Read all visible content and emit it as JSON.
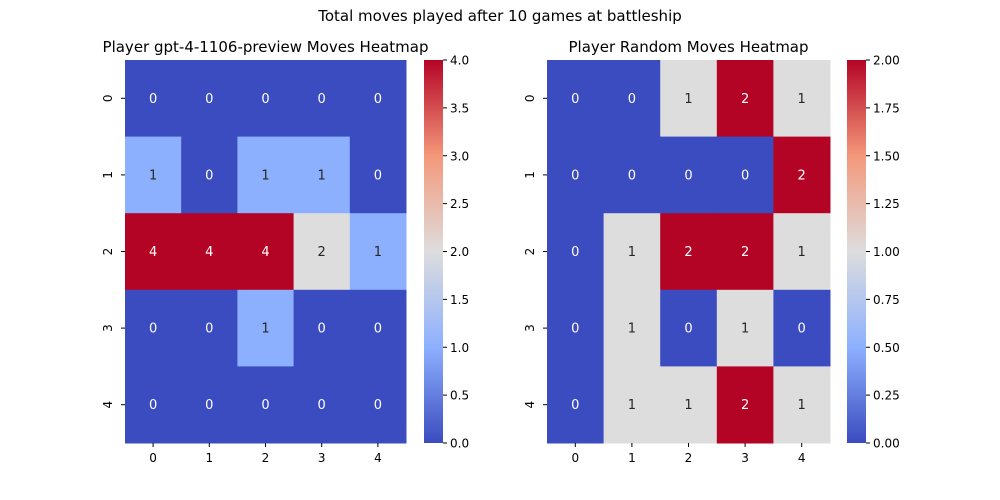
{
  "figure": {
    "suptitle": "Total moves played after 10 games at battleship"
  },
  "chart_data": [
    {
      "type": "heatmap",
      "title": "Player gpt-4-1106-preview Moves Heatmap",
      "x_ticks": [
        "0",
        "1",
        "2",
        "3",
        "4"
      ],
      "y_ticks": [
        "0",
        "1",
        "2",
        "3",
        "4"
      ],
      "values": [
        [
          0,
          0,
          0,
          0,
          0
        ],
        [
          1,
          0,
          1,
          1,
          0
        ],
        [
          4,
          4,
          4,
          2,
          1
        ],
        [
          0,
          0,
          1,
          0,
          0
        ],
        [
          0,
          0,
          0,
          0,
          0
        ]
      ],
      "colormap": "coolwarm",
      "vmin": 0,
      "vmax": 4,
      "colorbar_ticks": [
        "0.0",
        "0.5",
        "1.0",
        "1.5",
        "2.0",
        "2.5",
        "3.0",
        "3.5",
        "4.0"
      ],
      "annotated": true
    },
    {
      "type": "heatmap",
      "title": "Player Random Moves Heatmap",
      "x_ticks": [
        "0",
        "1",
        "2",
        "3",
        "4"
      ],
      "y_ticks": [
        "0",
        "1",
        "2",
        "3",
        "4"
      ],
      "values": [
        [
          0,
          0,
          1,
          2,
          1
        ],
        [
          0,
          0,
          0,
          0,
          2
        ],
        [
          0,
          1,
          2,
          2,
          1
        ],
        [
          0,
          1,
          0,
          1,
          0
        ],
        [
          0,
          1,
          1,
          2,
          1
        ]
      ],
      "colormap": "coolwarm",
      "vmin": 0,
      "vmax": 2,
      "colorbar_ticks": [
        "0.00",
        "0.25",
        "0.50",
        "0.75",
        "1.00",
        "1.25",
        "1.50",
        "1.75",
        "2.00"
      ],
      "annotated": true
    }
  ]
}
